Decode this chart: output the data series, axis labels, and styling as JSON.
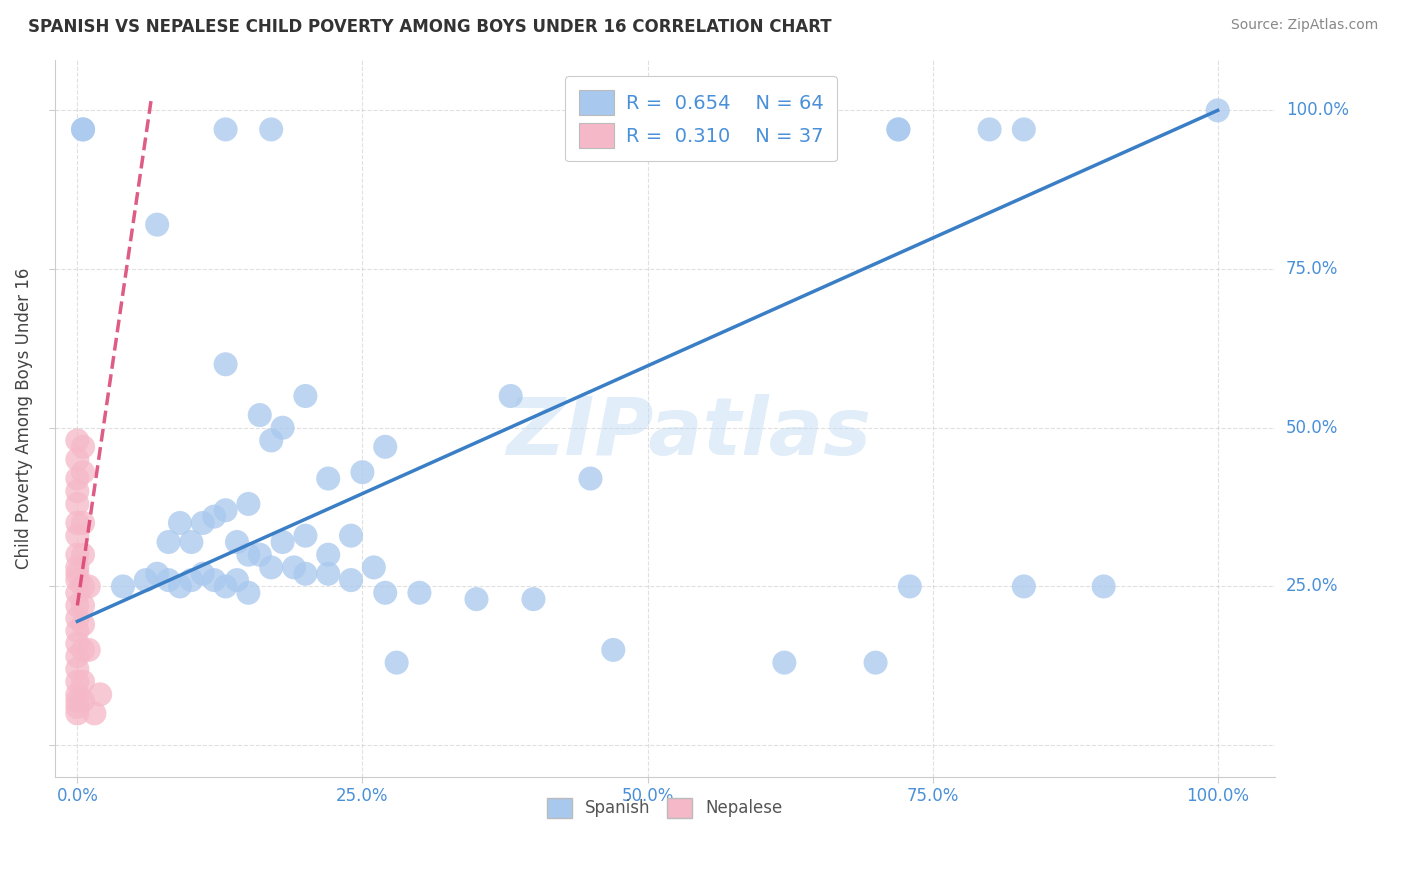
{
  "title": "SPANISH VS NEPALESE CHILD POVERTY AMONG BOYS UNDER 16 CORRELATION CHART",
  "source": "Source: ZipAtlas.com",
  "ylabel": "Child Poverty Among Boys Under 16",
  "watermark": "ZIPatlas",
  "blue_R": 0.654,
  "blue_N": 64,
  "pink_R": 0.31,
  "pink_N": 37,
  "blue_color": "#A8C8EE",
  "pink_color": "#F5B8C8",
  "blue_line_color": "#3A7EC6",
  "pink_line_color": "#D94070",
  "blue_scatter": [
    [
      0.005,
      0.97
    ],
    [
      0.005,
      0.97
    ],
    [
      0.13,
      0.97
    ],
    [
      0.17,
      0.97
    ],
    [
      0.53,
      0.97
    ],
    [
      0.57,
      0.97
    ],
    [
      0.72,
      0.97
    ],
    [
      0.72,
      0.97
    ],
    [
      0.8,
      0.97
    ],
    [
      0.83,
      0.97
    ],
    [
      0.07,
      0.82
    ],
    [
      0.13,
      0.6
    ],
    [
      0.16,
      0.52
    ],
    [
      0.17,
      0.48
    ],
    [
      0.18,
      0.5
    ],
    [
      0.2,
      0.55
    ],
    [
      0.22,
      0.42
    ],
    [
      0.25,
      0.43
    ],
    [
      0.27,
      0.47
    ],
    [
      0.13,
      0.37
    ],
    [
      0.15,
      0.38
    ],
    [
      0.08,
      0.32
    ],
    [
      0.09,
      0.35
    ],
    [
      0.1,
      0.32
    ],
    [
      0.11,
      0.35
    ],
    [
      0.12,
      0.36
    ],
    [
      0.14,
      0.32
    ],
    [
      0.15,
      0.3
    ],
    [
      0.16,
      0.3
    ],
    [
      0.18,
      0.32
    ],
    [
      0.2,
      0.33
    ],
    [
      0.22,
      0.3
    ],
    [
      0.24,
      0.33
    ],
    [
      0.17,
      0.28
    ],
    [
      0.19,
      0.28
    ],
    [
      0.2,
      0.27
    ],
    [
      0.22,
      0.27
    ],
    [
      0.24,
      0.26
    ],
    [
      0.26,
      0.28
    ],
    [
      0.04,
      0.25
    ],
    [
      0.06,
      0.26
    ],
    [
      0.07,
      0.27
    ],
    [
      0.08,
      0.26
    ],
    [
      0.09,
      0.25
    ],
    [
      0.1,
      0.26
    ],
    [
      0.11,
      0.27
    ],
    [
      0.12,
      0.26
    ],
    [
      0.13,
      0.25
    ],
    [
      0.14,
      0.26
    ],
    [
      0.15,
      0.24
    ],
    [
      0.27,
      0.24
    ],
    [
      0.3,
      0.24
    ],
    [
      0.35,
      0.23
    ],
    [
      0.4,
      0.23
    ],
    [
      0.38,
      0.55
    ],
    [
      0.45,
      0.42
    ],
    [
      0.28,
      0.13
    ],
    [
      0.47,
      0.15
    ],
    [
      0.62,
      0.13
    ],
    [
      0.7,
      0.13
    ],
    [
      0.73,
      0.25
    ],
    [
      0.83,
      0.25
    ],
    [
      0.9,
      0.25
    ],
    [
      1.0,
      1.0
    ]
  ],
  "pink_scatter": [
    [
      0.0,
      0.48
    ],
    [
      0.0,
      0.45
    ],
    [
      0.0,
      0.42
    ],
    [
      0.0,
      0.4
    ],
    [
      0.0,
      0.38
    ],
    [
      0.0,
      0.35
    ],
    [
      0.0,
      0.33
    ],
    [
      0.0,
      0.3
    ],
    [
      0.0,
      0.28
    ],
    [
      0.0,
      0.27
    ],
    [
      0.0,
      0.26
    ],
    [
      0.0,
      0.24
    ],
    [
      0.0,
      0.22
    ],
    [
      0.0,
      0.2
    ],
    [
      0.0,
      0.18
    ],
    [
      0.0,
      0.16
    ],
    [
      0.0,
      0.14
    ],
    [
      0.0,
      0.12
    ],
    [
      0.0,
      0.1
    ],
    [
      0.0,
      0.08
    ],
    [
      0.0,
      0.07
    ],
    [
      0.0,
      0.06
    ],
    [
      0.0,
      0.05
    ],
    [
      0.005,
      0.47
    ],
    [
      0.005,
      0.43
    ],
    [
      0.005,
      0.35
    ],
    [
      0.005,
      0.3
    ],
    [
      0.005,
      0.25
    ],
    [
      0.005,
      0.22
    ],
    [
      0.005,
      0.19
    ],
    [
      0.005,
      0.15
    ],
    [
      0.005,
      0.1
    ],
    [
      0.005,
      0.07
    ],
    [
      0.01,
      0.25
    ],
    [
      0.01,
      0.15
    ],
    [
      0.015,
      0.05
    ],
    [
      0.02,
      0.08
    ]
  ],
  "xlim": [
    -0.02,
    1.05
  ],
  "ylim": [
    -0.05,
    1.08
  ],
  "xticks": [
    0.0,
    0.25,
    0.5,
    0.75,
    1.0
  ],
  "yticks": [
    0.0,
    0.25,
    0.5,
    0.75,
    1.0
  ],
  "xticklabels": [
    "0.0%",
    "25.0%",
    "50.0%",
    "75.0%",
    "100.0%"
  ],
  "yticklabels_right": [
    "25.0%",
    "50.0%",
    "75.0%",
    "100.0%"
  ],
  "blue_line_x": [
    0.0,
    1.0
  ],
  "blue_line_y": [
    0.195,
    1.0
  ],
  "pink_line_x": [
    0.0,
    0.065
  ],
  "pink_line_y": [
    0.22,
    1.02
  ],
  "background_color": "#FFFFFF",
  "grid_color": "#CCCCCC"
}
